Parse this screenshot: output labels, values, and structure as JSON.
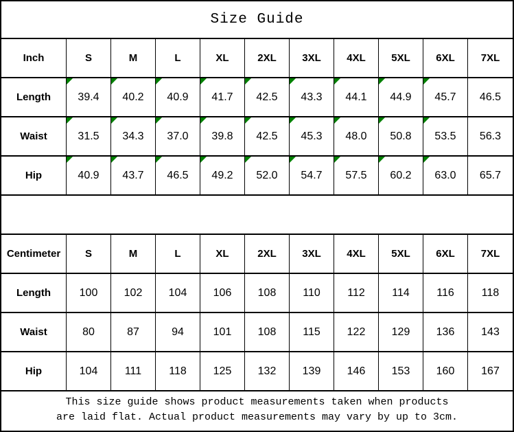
{
  "title": "Size Guide",
  "colors": {
    "border": "#000000",
    "background": "#ffffff",
    "text": "#000000",
    "marker_green": "#008000"
  },
  "sizes": [
    "S",
    "M",
    "L",
    "XL",
    "2XL",
    "3XL",
    "4XL",
    "5XL",
    "6XL",
    "7XL"
  ],
  "inch_table": {
    "unit_label": "Inch",
    "rows": [
      {
        "label": "Length",
        "values": [
          "39.4",
          "40.2",
          "40.9",
          "41.7",
          "42.5",
          "43.3",
          "44.1",
          "44.9",
          "45.7",
          "46.5"
        ],
        "markers": [
          true,
          true,
          true,
          true,
          true,
          true,
          true,
          true,
          true,
          false
        ]
      },
      {
        "label": "Waist",
        "values": [
          "31.5",
          "34.3",
          "37.0",
          "39.8",
          "42.5",
          "45.3",
          "48.0",
          "50.8",
          "53.5",
          "56.3"
        ],
        "markers": [
          true,
          true,
          true,
          true,
          true,
          true,
          true,
          true,
          true,
          false
        ]
      },
      {
        "label": "Hip",
        "values": [
          "40.9",
          "43.7",
          "46.5",
          "49.2",
          "52.0",
          "54.7",
          "57.5",
          "60.2",
          "63.0",
          "65.7"
        ],
        "markers": [
          true,
          true,
          true,
          true,
          true,
          true,
          true,
          true,
          true,
          false
        ]
      }
    ]
  },
  "cm_table": {
    "unit_label": "Centimeter",
    "rows": [
      {
        "label": "Length",
        "values": [
          "100",
          "102",
          "104",
          "106",
          "108",
          "110",
          "112",
          "114",
          "116",
          "118"
        ],
        "markers": [
          false,
          false,
          false,
          false,
          false,
          false,
          false,
          false,
          false,
          false
        ]
      },
      {
        "label": "Waist",
        "values": [
          "80",
          "87",
          "94",
          "101",
          "108",
          "115",
          "122",
          "129",
          "136",
          "143"
        ],
        "markers": [
          false,
          false,
          false,
          false,
          false,
          false,
          false,
          false,
          false,
          false
        ]
      },
      {
        "label": "Hip",
        "values": [
          "104",
          "111",
          "118",
          "125",
          "132",
          "139",
          "146",
          "153",
          "160",
          "167"
        ],
        "markers": [
          false,
          false,
          false,
          false,
          false,
          false,
          false,
          false,
          false,
          false
        ]
      }
    ]
  },
  "footer": {
    "line1": "This size guide shows product measurements taken when products",
    "line2": "are laid flat. Actual product measurements may vary by up to 3cm."
  }
}
